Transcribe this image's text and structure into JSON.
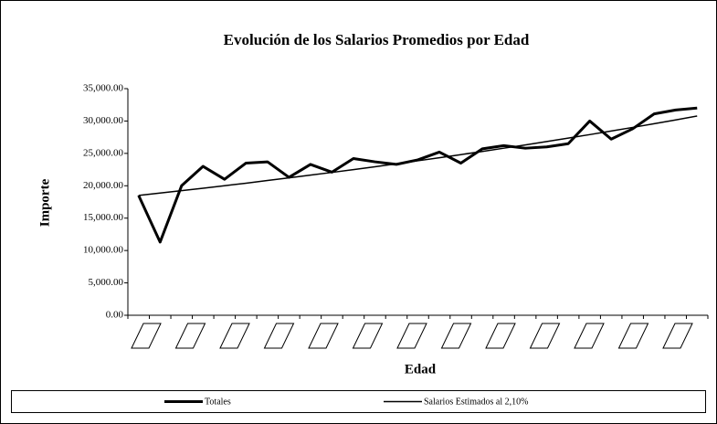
{
  "chart_data": {
    "type": "line",
    "title": "Evolución de los Salarios Promedios por Edad",
    "x_label": "Edad",
    "y_label": "Importe",
    "categories": [
      null,
      null,
      null,
      null,
      null,
      null,
      null,
      null,
      null,
      null,
      null,
      null,
      null,
      null,
      null,
      null,
      null,
      null,
      null,
      null,
      null,
      null,
      null,
      null,
      null,
      null,
      null
    ],
    "series": [
      {
        "name": "Totales",
        "color": "#000000",
        "values": [
          18500,
          11300,
          20000,
          23000,
          21000,
          23500,
          23700,
          21300,
          23300,
          22100,
          24200,
          23700,
          23300,
          24000,
          25200,
          23500,
          25700,
          26200,
          25800,
          26000,
          26500,
          30000,
          27200,
          28800,
          31100,
          31700,
          32000
        ]
      },
      {
        "name": "Salarios Estimados al 2,10%",
        "color": "#000000",
        "values": [
          18500,
          18870,
          19240,
          19620,
          20010,
          20400,
          20810,
          21220,
          21640,
          22060,
          22500,
          22940,
          23390,
          23860,
          24330,
          24810,
          25300,
          25800,
          26310,
          26830,
          27360,
          27900,
          28450,
          29010,
          29580,
          30170,
          30770
        ]
      }
    ],
    "ylim": [
      0,
      35000
    ],
    "yticks": [
      {
        "value": 0,
        "label": "0.00"
      },
      {
        "value": 5000,
        "label": "5,000.00"
      },
      {
        "value": 10000,
        "label": "10,000.00"
      },
      {
        "value": 15000,
        "label": "15,000.00"
      },
      {
        "value": 20000,
        "label": "20,000.00"
      },
      {
        "value": 25000,
        "label": "25,000.00"
      },
      {
        "value": 30000,
        "label": "30,000.00"
      },
      {
        "value": 35000,
        "label": "35,000.00"
      }
    ],
    "grid": false,
    "legend": "bottom"
  }
}
